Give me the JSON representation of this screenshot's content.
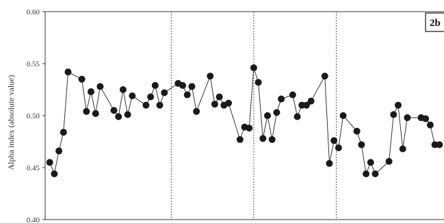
{
  "chart_data": {
    "type": "line",
    "title": "",
    "panel_label": "2b",
    "xlabel": "",
    "ylabel": "Alpha index (absolute value)",
    "ylim": [
      0.4,
      0.6
    ],
    "yticks": [
      "0.40",
      "0.45",
      "0.50",
      "0.55",
      "0.60"
    ],
    "xlim": [
      0,
      87
    ],
    "grid": false,
    "markers": "filled-circle",
    "colors": {
      "line": "#333333",
      "marker": "#1a1a1a",
      "divider": "#555555",
      "axis": "#333333"
    },
    "dividers_x": [
      27.5,
      45.5,
      63.5
    ],
    "series": [
      {
        "values": [
          {
            "x": 1,
            "y": 0.455
          },
          {
            "x": 2,
            "y": 0.444
          },
          {
            "x": 3,
            "y": 0.466
          },
          {
            "x": 4,
            "y": 0.484
          },
          {
            "x": 5,
            "y": 0.542
          },
          {
            "x": 8,
            "y": 0.535
          },
          {
            "x": 9,
            "y": 0.504
          },
          {
            "x": 10,
            "y": 0.523
          },
          {
            "x": 11,
            "y": 0.502
          },
          {
            "x": 12,
            "y": 0.528
          },
          {
            "x": 15,
            "y": 0.505
          },
          {
            "x": 16,
            "y": 0.499
          },
          {
            "x": 17,
            "y": 0.525
          },
          {
            "x": 18,
            "y": 0.501
          },
          {
            "x": 19,
            "y": 0.519
          },
          {
            "x": 22,
            "y": 0.51
          },
          {
            "x": 23,
            "y": 0.518
          },
          {
            "x": 24,
            "y": 0.529
          },
          {
            "x": 25,
            "y": 0.51
          },
          {
            "x": 26,
            "y": 0.522
          },
          {
            "x": 29,
            "y": 0.531
          },
          {
            "x": 30,
            "y": 0.529
          },
          {
            "x": 31,
            "y": 0.52
          },
          {
            "x": 32,
            "y": 0.528
          },
          {
            "x": 33,
            "y": 0.504
          },
          {
            "x": 36,
            "y": 0.538
          },
          {
            "x": 37,
            "y": 0.511
          },
          {
            "x": 38,
            "y": 0.518
          },
          {
            "x": 39,
            "y": 0.51
          },
          {
            "x": 40,
            "y": 0.512
          },
          {
            "x": 42.5,
            "y": 0.477
          },
          {
            "x": 43.5,
            "y": 0.489
          },
          {
            "x": 44.5,
            "y": 0.488
          },
          {
            "x": 45.5,
            "y": 0.546
          },
          {
            "x": 46.5,
            "y": 0.532
          },
          {
            "x": 47.5,
            "y": 0.478
          },
          {
            "x": 48.5,
            "y": 0.5
          },
          {
            "x": 49.5,
            "y": 0.477
          },
          {
            "x": 50.5,
            "y": 0.503
          },
          {
            "x": 51.5,
            "y": 0.516
          },
          {
            "x": 54,
            "y": 0.52
          },
          {
            "x": 55,
            "y": 0.499
          },
          {
            "x": 56,
            "y": 0.51
          },
          {
            "x": 57,
            "y": 0.51
          },
          {
            "x": 58,
            "y": 0.514
          },
          {
            "x": 61,
            "y": 0.538
          },
          {
            "x": 62,
            "y": 0.454
          },
          {
            "x": 63,
            "y": 0.476
          },
          {
            "x": 64,
            "y": 0.469
          },
          {
            "x": 65,
            "y": 0.5
          },
          {
            "x": 68,
            "y": 0.485
          },
          {
            "x": 69,
            "y": 0.472
          },
          {
            "x": 70,
            "y": 0.444
          },
          {
            "x": 71,
            "y": 0.455
          },
          {
            "x": 72,
            "y": 0.444
          },
          {
            "x": 75,
            "y": 0.456
          },
          {
            "x": 76,
            "y": 0.501
          },
          {
            "x": 77,
            "y": 0.51
          },
          {
            "x": 78,
            "y": 0.468
          },
          {
            "x": 79,
            "y": 0.498
          },
          {
            "x": 82,
            "y": 0.498
          },
          {
            "x": 83,
            "y": 0.497
          },
          {
            "x": 84,
            "y": 0.491
          },
          {
            "x": 85,
            "y": 0.472
          },
          {
            "x": 86,
            "y": 0.472
          }
        ]
      }
    ]
  }
}
